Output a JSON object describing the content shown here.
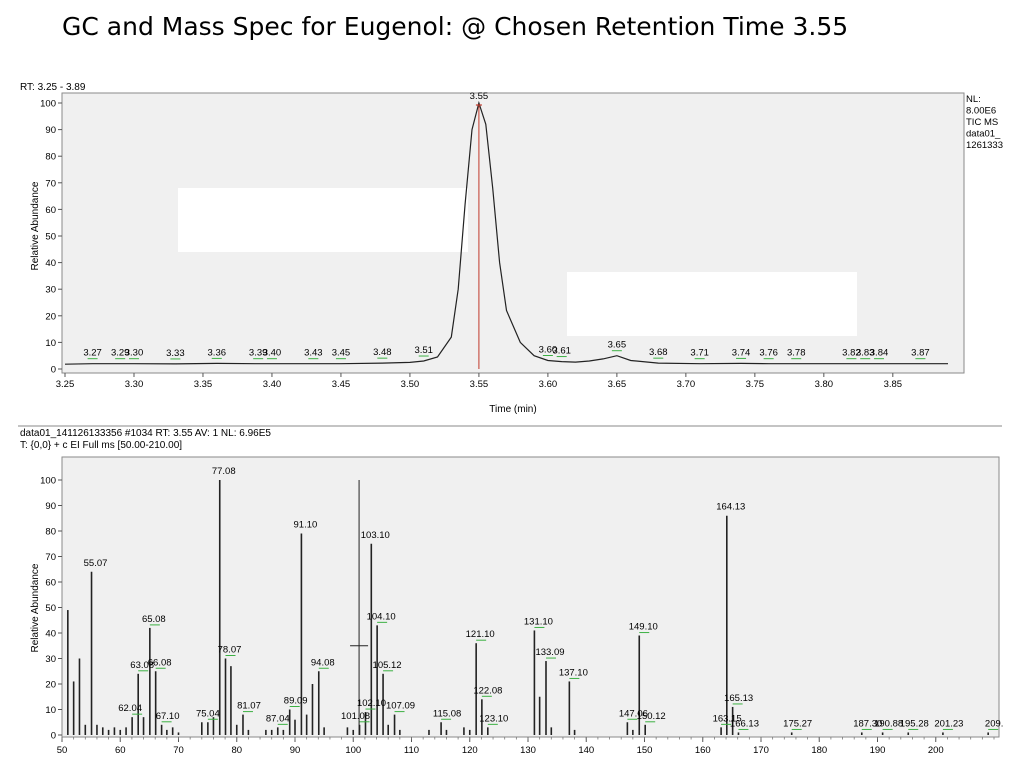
{
  "title": "GC and Mass Spec for Eugenol: @ Chosen Retention Time 3.55",
  "chart_data": [
    {
      "type": "line",
      "header": "RT: 3.25 - 3.89",
      "side_info": [
        "NL:",
        "8.00E6",
        "TIC MS",
        "data01_",
        "1261333"
      ],
      "xlabel": "Time (min)",
      "ylabel": "Relative Abundance",
      "xlim": [
        3.25,
        3.89
      ],
      "ylim": [
        0,
        100
      ],
      "x_ticks": [
        "3.25",
        "3.30",
        "3.35",
        "3.40",
        "3.45",
        "3.50",
        "3.55",
        "3.60",
        "3.65",
        "3.70",
        "3.75",
        "3.80",
        "3.85"
      ],
      "y_ticks": [
        "0",
        "10",
        "20",
        "30",
        "40",
        "50",
        "60",
        "70",
        "80",
        "90",
        "100"
      ],
      "series": [
        {
          "x": [
            3.25,
            3.27,
            3.29,
            3.3,
            3.33,
            3.36,
            3.39,
            3.4,
            3.43,
            3.45,
            3.48,
            3.5,
            3.51,
            3.52,
            3.53,
            3.535,
            3.54,
            3.545,
            3.55,
            3.555,
            3.56,
            3.565,
            3.57,
            3.58,
            3.59,
            3.6,
            3.61,
            3.62,
            3.63,
            3.64,
            3.65,
            3.66,
            3.68,
            3.71,
            3.74,
            3.76,
            3.78,
            3.82,
            3.83,
            3.84,
            3.87,
            3.89
          ],
          "y": [
            1.8,
            2,
            2,
            2,
            1.9,
            2.1,
            2,
            2,
            2,
            2,
            2.2,
            2.5,
            3,
            4.5,
            12,
            30,
            62,
            90,
            100,
            92,
            68,
            40,
            22,
            10,
            5,
            3.2,
            2.8,
            2.6,
            3,
            3.8,
            5,
            3.2,
            2.2,
            2,
            2.1,
            2,
            2,
            2,
            2,
            2,
            2,
            2
          ]
        }
      ],
      "peak_labels": [
        {
          "x": 3.27,
          "label": "3.27"
        },
        {
          "x": 3.29,
          "label": "3.29"
        },
        {
          "x": 3.3,
          "label": "3.30"
        },
        {
          "x": 3.33,
          "label": "3.33"
        },
        {
          "x": 3.36,
          "label": "3.36"
        },
        {
          "x": 3.39,
          "label": "3.39"
        },
        {
          "x": 3.4,
          "label": "3.40"
        },
        {
          "x": 3.43,
          "label": "3.43"
        },
        {
          "x": 3.45,
          "label": "3.45"
        },
        {
          "x": 3.48,
          "label": "3.48"
        },
        {
          "x": 3.51,
          "label": "3.51"
        },
        {
          "x": 3.55,
          "label": "3.55"
        },
        {
          "x": 3.6,
          "label": "3.60"
        },
        {
          "x": 3.61,
          "label": "3.61"
        },
        {
          "x": 3.65,
          "label": "3.65"
        },
        {
          "x": 3.68,
          "label": "3.68"
        },
        {
          "x": 3.71,
          "label": "3.71"
        },
        {
          "x": 3.74,
          "label": "3.74"
        },
        {
          "x": 3.76,
          "label": "3.76"
        },
        {
          "x": 3.78,
          "label": "3.78"
        },
        {
          "x": 3.82,
          "label": "3.82"
        },
        {
          "x": 3.83,
          "label": "3.83"
        },
        {
          "x": 3.84,
          "label": "3.84"
        },
        {
          "x": 3.87,
          "label": "3.87"
        }
      ],
      "retention_time_marker": 3.55,
      "colors": {
        "trace": "#222222",
        "marker": "#c0392b",
        "peak_tick": "#3cb043",
        "plot_bg": "#f0f0f0"
      }
    },
    {
      "type": "bar",
      "header_lines": [
        "data01_141126133356 #1034  RT: 3.55  AV: 1  NL: 6.96E5",
        "T: {0,0}  + c EI Full ms [50.00-210.00]"
      ],
      "ylabel": "Relative Abundance",
      "xlim": [
        50,
        210
      ],
      "ylim": [
        0,
        100
      ],
      "x_ticks": [
        "50",
        "60",
        "70",
        "80",
        "90",
        "100",
        "110",
        "120",
        "130",
        "140",
        "150",
        "160",
        "170",
        "180",
        "190",
        "200"
      ],
      "y_ticks": [
        "0",
        "10",
        "20",
        "30",
        "40",
        "50",
        "60",
        "70",
        "80",
        "90",
        "100"
      ],
      "peaks": [
        {
          "mz": 51.0,
          "i": 49
        },
        {
          "mz": 52.0,
          "i": 21
        },
        {
          "mz": 53.0,
          "i": 30
        },
        {
          "mz": 54.0,
          "i": 4
        },
        {
          "mz": 55.07,
          "i": 64,
          "label": "55.07"
        },
        {
          "mz": 56.0,
          "i": 4
        },
        {
          "mz": 57.0,
          "i": 3
        },
        {
          "mz": 58.0,
          "i": 2
        },
        {
          "mz": 59.0,
          "i": 3
        },
        {
          "mz": 60.0,
          "i": 2
        },
        {
          "mz": 61.0,
          "i": 3
        },
        {
          "mz": 62.04,
          "i": 7,
          "label": "62.04"
        },
        {
          "mz": 63.08,
          "i": 24,
          "label": "63.08"
        },
        {
          "mz": 64.0,
          "i": 7
        },
        {
          "mz": 65.08,
          "i": 42,
          "label": "65.08"
        },
        {
          "mz": 66.08,
          "i": 25,
          "label": "66.08"
        },
        {
          "mz": 67.1,
          "i": 4,
          "label": "67.10"
        },
        {
          "mz": 68.0,
          "i": 2
        },
        {
          "mz": 69.0,
          "i": 3
        },
        {
          "mz": 70.0,
          "i": 1
        },
        {
          "mz": 74.0,
          "i": 5
        },
        {
          "mz": 75.04,
          "i": 5,
          "label": "75.04"
        },
        {
          "mz": 76.0,
          "i": 7
        },
        {
          "mz": 77.08,
          "i": 100,
          "label": "77.08"
        },
        {
          "mz": 78.07,
          "i": 30,
          "label": "78.07"
        },
        {
          "mz": 79.0,
          "i": 27
        },
        {
          "mz": 80.0,
          "i": 4
        },
        {
          "mz": 81.07,
          "i": 8,
          "label": "81.07"
        },
        {
          "mz": 82.0,
          "i": 2
        },
        {
          "mz": 85.0,
          "i": 2
        },
        {
          "mz": 86.0,
          "i": 2
        },
        {
          "mz": 87.04,
          "i": 3,
          "label": "87.04"
        },
        {
          "mz": 88.0,
          "i": 2
        },
        {
          "mz": 89.09,
          "i": 10,
          "label": "89.09"
        },
        {
          "mz": 90.0,
          "i": 6
        },
        {
          "mz": 91.1,
          "i": 79,
          "label": "91.10"
        },
        {
          "mz": 92.0,
          "i": 8
        },
        {
          "mz": 93.0,
          "i": 20
        },
        {
          "mz": 94.08,
          "i": 25,
          "label": "94.08"
        },
        {
          "mz": 95.0,
          "i": 3
        },
        {
          "mz": 99.0,
          "i": 3
        },
        {
          "mz": 100.0,
          "i": 2
        },
        {
          "mz": 101.08,
          "i": 4,
          "label": "101.08"
        },
        {
          "mz": 102.1,
          "i": 9,
          "label": "102.10"
        },
        {
          "mz": 103.1,
          "i": 75,
          "label": "103.10"
        },
        {
          "mz": 104.1,
          "i": 43,
          "label": "104.10"
        },
        {
          "mz": 105.12,
          "i": 24,
          "label": "105.12"
        },
        {
          "mz": 106.0,
          "i": 4
        },
        {
          "mz": 107.09,
          "i": 8,
          "label": "107.09"
        },
        {
          "mz": 108.0,
          "i": 2
        },
        {
          "mz": 113.0,
          "i": 2
        },
        {
          "mz": 115.08,
          "i": 5,
          "label": "115.08"
        },
        {
          "mz": 116.0,
          "i": 2
        },
        {
          "mz": 119.0,
          "i": 3
        },
        {
          "mz": 120.0,
          "i": 2
        },
        {
          "mz": 121.1,
          "i": 36,
          "label": "121.10"
        },
        {
          "mz": 122.08,
          "i": 14,
          "label": "122.08"
        },
        {
          "mz": 123.1,
          "i": 3,
          "label": "123.10"
        },
        {
          "mz": 131.1,
          "i": 41,
          "label": "131.10"
        },
        {
          "mz": 132.0,
          "i": 15
        },
        {
          "mz": 133.09,
          "i": 29,
          "label": "133.09"
        },
        {
          "mz": 134.0,
          "i": 3
        },
        {
          "mz": 137.1,
          "i": 21,
          "label": "137.10"
        },
        {
          "mz": 138.0,
          "i": 2
        },
        {
          "mz": 147.06,
          "i": 5,
          "label": "147.06"
        },
        {
          "mz": 148.0,
          "i": 2
        },
        {
          "mz": 149.1,
          "i": 39,
          "label": "149.10"
        },
        {
          "mz": 150.12,
          "i": 4,
          "label": "150.12"
        },
        {
          "mz": 163.15,
          "i": 3,
          "label": "163.15"
        },
        {
          "mz": 164.13,
          "i": 86,
          "label": "164.13"
        },
        {
          "mz": 165.13,
          "i": 11,
          "label": "165.13"
        },
        {
          "mz": 166.13,
          "i": 1,
          "label": "166.13"
        },
        {
          "mz": 175.27,
          "i": 1,
          "label": "175.27"
        },
        {
          "mz": 187.3,
          "i": 1,
          "label": "187.30"
        },
        {
          "mz": 190.88,
          "i": 1,
          "label": "190.88"
        },
        {
          "mz": 195.28,
          "i": 1,
          "label": "195.28"
        },
        {
          "mz": 201.23,
          "i": 1,
          "label": "201.23"
        },
        {
          "mz": 209.0,
          "i": 1,
          "label": "209."
        }
      ],
      "cursor_mz": 101.0,
      "colors": {
        "bar": "#222222",
        "peak_tick": "#3cb043",
        "plot_bg": "#f0f0f0"
      }
    }
  ]
}
